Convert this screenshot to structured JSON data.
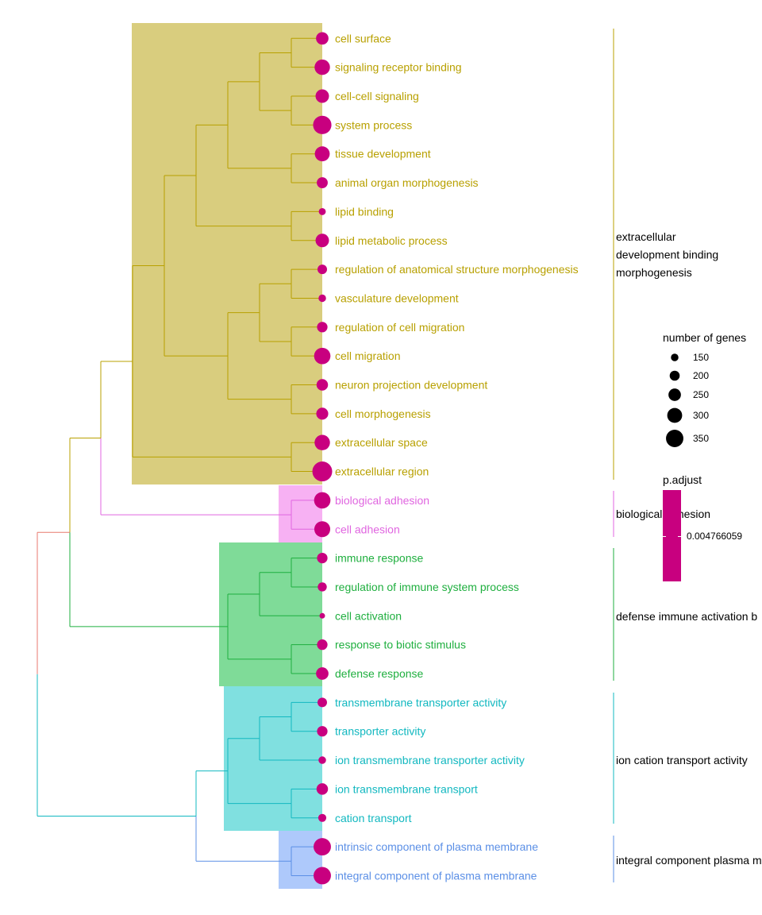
{
  "chart_data": {
    "type": "treeplot",
    "terms": [
      {
        "label": "cell surface",
        "cluster": 0,
        "count": 250
      },
      {
        "label": "signaling receptor binding",
        "cluster": 0,
        "count": 310
      },
      {
        "label": "cell-cell signaling",
        "cluster": 0,
        "count": 270
      },
      {
        "label": "system process",
        "cluster": 0,
        "count": 370
      },
      {
        "label": "tissue development",
        "cluster": 0,
        "count": 300
      },
      {
        "label": "animal organ morphogenesis",
        "cluster": 0,
        "count": 220
      },
      {
        "label": "lipid binding",
        "cluster": 0,
        "count": 140
      },
      {
        "label": "lipid metabolic process",
        "cluster": 0,
        "count": 270
      },
      {
        "label": "regulation of anatomical structure morphogenesis",
        "cluster": 0,
        "count": 190
      },
      {
        "label": "vasculature development",
        "cluster": 0,
        "count": 150
      },
      {
        "label": "regulation of cell migration",
        "cluster": 0,
        "count": 210
      },
      {
        "label": "cell migration",
        "cluster": 0,
        "count": 330
      },
      {
        "label": "neuron projection development",
        "cluster": 0,
        "count": 230
      },
      {
        "label": "cell morphogenesis",
        "cluster": 0,
        "count": 240
      },
      {
        "label": "extracellular space",
        "cluster": 0,
        "count": 310
      },
      {
        "label": "extracellular region",
        "cluster": 0,
        "count": 400
      },
      {
        "label": "biological adhesion",
        "cluster": 1,
        "count": 330
      },
      {
        "label": "cell adhesion",
        "cluster": 1,
        "count": 320
      },
      {
        "label": "immune response",
        "cluster": 2,
        "count": 210
      },
      {
        "label": "regulation of immune system process",
        "cluster": 2,
        "count": 180
      },
      {
        "label": "cell activation",
        "cluster": 2,
        "count": 110
      },
      {
        "label": "response to biotic stimulus",
        "cluster": 2,
        "count": 210
      },
      {
        "label": "defense response",
        "cluster": 2,
        "count": 250
      },
      {
        "label": "transmembrane transporter activity",
        "cluster": 3,
        "count": 190
      },
      {
        "label": "transporter activity",
        "cluster": 3,
        "count": 210
      },
      {
        "label": "ion transmembrane transporter activity",
        "cluster": 3,
        "count": 150
      },
      {
        "label": "ion transmembrane transport",
        "cluster": 3,
        "count": 230
      },
      {
        "label": "cation transport",
        "cluster": 3,
        "count": 160
      },
      {
        "label": "intrinsic component of plasma membrane",
        "cluster": 4,
        "count": 350
      },
      {
        "label": "integral component of plasma membrane",
        "cluster": 4,
        "count": 350
      }
    ],
    "clusters": [
      {
        "label": "extracellular\ndevelopment binding\nmorphogenesis",
        "color": "#b8a000",
        "fill": "#d9cd7e"
      },
      {
        "label": "biological adhesion",
        "color": "#e066e0",
        "fill": "#f7b1f3"
      },
      {
        "label": "defense immune activation b",
        "color": "#1faf3f",
        "fill": "#7fdb98"
      },
      {
        "label": "ion cation transport activity",
        "color": "#12b8c0",
        "fill": "#80e0e0"
      },
      {
        "label": "integral component plasma m",
        "color": "#5b8fe6",
        "fill": "#aec9fb"
      }
    ],
    "point_color": "#c8007f",
    "size_legend": {
      "title": "number of genes",
      "values": [
        150,
        200,
        250,
        300,
        350
      ]
    },
    "color_legend": {
      "title": "p.adjust",
      "value": "0.004766059",
      "color": "#c8007f"
    }
  }
}
